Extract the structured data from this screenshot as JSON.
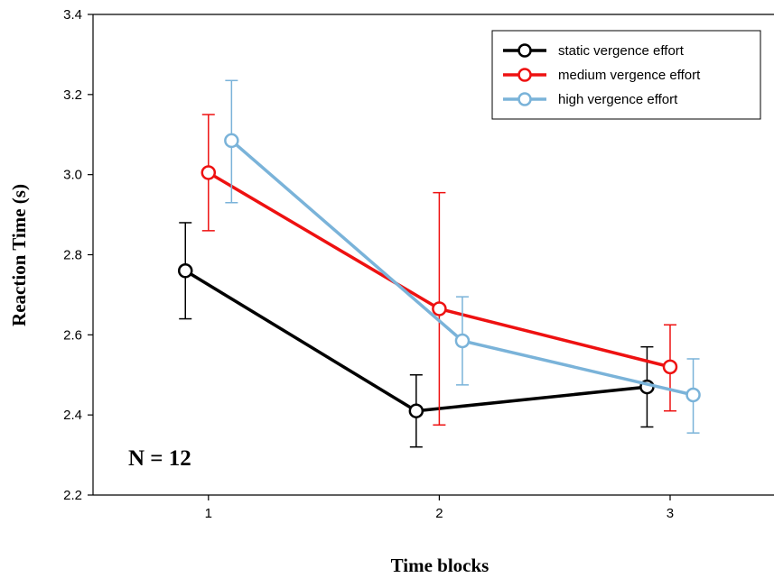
{
  "chart_data": {
    "type": "line",
    "xlabel": "Time blocks",
    "ylabel": "Reaction Time (s)",
    "x_ticks": [
      "1",
      "2",
      "3"
    ],
    "y_ticks": [
      "2.2",
      "2.4",
      "2.6",
      "2.8",
      "3.0",
      "3.2",
      "3.4"
    ],
    "ylim": [
      2.2,
      3.4
    ],
    "xlim": [
      0.5,
      3.45
    ],
    "annotation": "N = 12",
    "legend_position": "top-right",
    "series": [
      {
        "name": "static vergence effort",
        "color": "#000000",
        "x": [
          0.9,
          1.9,
          2.9
        ],
        "y": [
          2.76,
          2.41,
          2.47
        ],
        "err_low": [
          2.64,
          2.32,
          2.37
        ],
        "err_high": [
          2.88,
          2.5,
          2.57
        ]
      },
      {
        "name": "medium vergence effort",
        "color": "#ee1111",
        "x": [
          1.0,
          2.0,
          3.0
        ],
        "y": [
          3.005,
          2.665,
          2.52
        ],
        "err_low": [
          2.86,
          2.375,
          2.41
        ],
        "err_high": [
          3.15,
          2.955,
          2.625
        ]
      },
      {
        "name": "high vergence effort",
        "color": "#7ab3d9",
        "x": [
          1.1,
          2.1,
          3.1
        ],
        "y": [
          3.085,
          2.585,
          2.45
        ],
        "err_low": [
          2.93,
          2.475,
          2.355
        ],
        "err_high": [
          3.235,
          2.695,
          2.54
        ]
      }
    ]
  }
}
